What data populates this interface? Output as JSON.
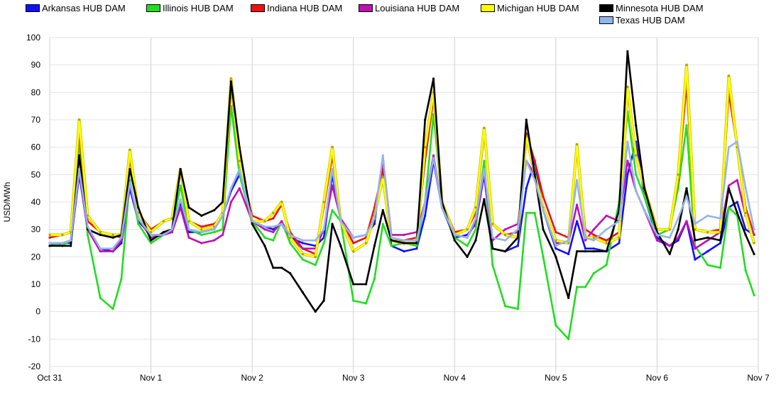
{
  "chart_data": {
    "type": "line",
    "title": "",
    "xlabel": "",
    "ylabel": "USD/MWh",
    "ylim": [
      -20,
      100
    ],
    "yticks": [
      -20,
      -10,
      0,
      10,
      20,
      30,
      40,
      50,
      60,
      70,
      80,
      90,
      100
    ],
    "xlim_hours": [
      0,
      168
    ],
    "x_tick_labels": [
      "Oct 31",
      "Nov 1",
      "Nov 2",
      "Nov 3",
      "Nov 4",
      "Nov 5",
      "Nov 6",
      "Nov 7"
    ],
    "grid": true,
    "legend_position": "top",
    "sample_hours_of_day": [
      0,
      3,
      5,
      7,
      9,
      12,
      15,
      17,
      19,
      21
    ],
    "final_hour": 167,
    "series": [
      {
        "name": "Arkansas HUB DAM",
        "color": "#1010ff",
        "values": [
          24,
          25,
          25,
          50,
          30,
          23,
          22,
          25,
          45,
          33,
          28,
          28,
          29,
          40,
          29,
          29,
          30,
          35,
          44,
          50,
          33,
          31,
          30,
          32,
          27,
          25,
          24,
          27,
          50,
          33,
          27,
          28,
          32,
          56,
          24,
          22,
          23,
          35,
          55,
          38,
          27,
          28,
          32,
          50,
          23,
          22,
          24,
          45,
          55,
          37,
          23,
          21,
          33,
          23,
          23,
          22,
          25,
          50,
          62,
          42,
          27,
          24,
          26,
          33,
          19,
          22,
          25,
          38,
          40,
          30,
          28
        ]
      },
      {
        "name": "Illinois HUB DAM",
        "color": "#22dd22",
        "values": [
          25,
          24,
          26,
          62,
          28,
          5,
          1,
          12,
          48,
          32,
          25,
          28,
          30,
          46,
          30,
          28,
          29,
          30,
          75,
          50,
          33,
          27,
          26,
          33,
          25,
          19,
          17,
          25,
          37,
          33,
          4,
          3,
          12,
          32,
          24,
          25,
          24,
          40,
          72,
          40,
          27,
          24,
          30,
          55,
          17,
          2,
          1,
          36,
          36,
          20,
          -5,
          -10,
          9,
          9,
          14,
          17,
          40,
          73,
          50,
          42,
          28,
          30,
          45,
          68,
          24,
          17,
          16,
          38,
          35,
          15,
          6
        ]
      },
      {
        "name": "Indiana HUB DAM",
        "color": "#ee1111",
        "values": [
          27,
          28,
          29,
          66,
          33,
          29,
          28,
          27,
          56,
          36,
          30,
          33,
          34,
          52,
          33,
          31,
          32,
          35,
          82,
          55,
          35,
          33,
          34,
          39,
          29,
          23,
          21,
          38,
          57,
          34,
          25,
          27,
          38,
          52,
          26,
          26,
          27,
          55,
          78,
          40,
          29,
          30,
          36,
          65,
          32,
          28,
          29,
          65,
          55,
          42,
          29,
          27,
          59,
          30,
          28,
          26,
          29,
          80,
          57,
          45,
          30,
          30,
          48,
          83,
          30,
          29,
          30,
          80,
          60,
          38,
          28
        ]
      },
      {
        "name": "Louisiana HUB DAM",
        "color": "#c010b0",
        "values": [
          25,
          25,
          26,
          51,
          30,
          22,
          22,
          26,
          46,
          34,
          27,
          28,
          29,
          38,
          27,
          25,
          26,
          28,
          40,
          45,
          33,
          30,
          29,
          33,
          27,
          23,
          23,
          30,
          46,
          34,
          27,
          28,
          34,
          56,
          28,
          28,
          29,
          40,
          57,
          38,
          28,
          27,
          33,
          51,
          26,
          30,
          32,
          55,
          50,
          38,
          25,
          25,
          39,
          26,
          30,
          35,
          33,
          55,
          44,
          37,
          26,
          24,
          27,
          33,
          23,
          26,
          29,
          46,
          48,
          35,
          28
        ]
      },
      {
        "name": "Michigan HUB DAM",
        "color": "#ffff00",
        "values": [
          28,
          28,
          29,
          70,
          35,
          29,
          28,
          28,
          59,
          36,
          29,
          33,
          34,
          52,
          33,
          30,
          31,
          36,
          85,
          55,
          33,
          33,
          36,
          40,
          27,
          21,
          20,
          40,
          60,
          33,
          22,
          25,
          35,
          49,
          26,
          25,
          25,
          60,
          80,
          40,
          28,
          30,
          38,
          67,
          32,
          28,
          27,
          64,
          50,
          38,
          26,
          25,
          61,
          27,
          27,
          25,
          27,
          82,
          57,
          45,
          30,
          30,
          50,
          90,
          30,
          29,
          29,
          86,
          60,
          36,
          25
        ]
      },
      {
        "name": "Minnesota HUB DAM",
        "color": "#000000",
        "values": [
          24,
          24,
          24,
          57,
          30,
          28,
          27,
          28,
          52,
          38,
          26,
          29,
          30,
          52,
          38,
          35,
          37,
          40,
          84,
          60,
          32,
          24,
          16,
          16,
          14,
          7,
          0,
          4,
          32,
          24,
          10,
          10,
          24,
          37,
          26,
          25,
          25,
          70,
          85,
          40,
          26,
          20,
          26,
          41,
          23,
          22,
          27,
          70,
          50,
          30,
          20,
          5,
          22,
          22,
          22,
          22,
          37,
          95,
          68,
          45,
          29,
          21,
          30,
          45,
          26,
          27,
          26,
          45,
          36,
          28,
          21
        ]
      },
      {
        "name": "Texas HUB DAM",
        "color": "#94b4ec",
        "values": [
          25,
          25,
          26,
          52,
          31,
          23,
          23,
          27,
          47,
          34,
          28,
          28,
          30,
          41,
          30,
          29,
          30,
          35,
          45,
          52,
          33,
          31,
          31,
          32,
          28,
          26,
          26,
          30,
          52,
          33,
          27,
          28,
          34,
          57,
          27,
          26,
          26,
          40,
          56,
          38,
          28,
          27,
          34,
          52,
          27,
          26,
          30,
          55,
          48,
          37,
          24,
          26,
          48,
          27,
          26,
          30,
          33,
          62,
          44,
          37,
          28,
          27,
          34,
          42,
          32,
          35,
          34,
          60,
          62,
          45,
          30
        ]
      }
    ]
  }
}
